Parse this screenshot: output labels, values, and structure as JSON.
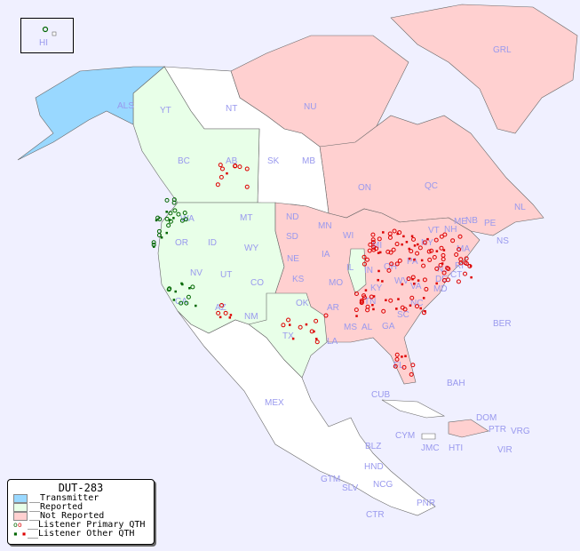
{
  "title": "DUT-283",
  "colors": {
    "background": "#f0f0ff",
    "transmitter": "#99d8ff",
    "reported": "#e8ffe8",
    "not_reported": "#ffd0d0",
    "unlisted": "#ffffff",
    "primary_green": "#006600",
    "primary_red": "#dd0000",
    "label": "#9999ee"
  },
  "legend": {
    "title": "DUT-283",
    "items": [
      {
        "label": "__Transmitter"
      },
      {
        "label": "__Reported"
      },
      {
        "label": "__Not Reported"
      },
      {
        "label": "__Listener Primary QTH"
      },
      {
        "label": "__Listener Other QTH"
      }
    ]
  },
  "regions": {
    "HI": "HI",
    "ALS": "ALS",
    "YT": "YT",
    "NT": "NT",
    "NU": "NU",
    "GRL": "GRL",
    "BC": "BC",
    "AB": "AB",
    "SK": "SK",
    "MB": "MB",
    "ON": "ON",
    "QC": "QC",
    "NL": "NL",
    "NS": "NS",
    "NB": "NB",
    "PE": "PE",
    "WA": "WA",
    "OR": "OR",
    "CA": "CA",
    "NV": "NV",
    "ID": "ID",
    "MT": "MT",
    "WY": "WY",
    "UT": "UT",
    "AZ": "AZ",
    "CO": "CO",
    "NM": "NM",
    "ND": "ND",
    "SD": "SD",
    "NE": "NE",
    "KS": "KS",
    "OK": "OK",
    "TX": "TX",
    "MN": "MN",
    "IA": "IA",
    "MO": "MO",
    "AR": "AR",
    "LA": "LA",
    "WI": "WI",
    "IL": "IL",
    "MS": "MS",
    "MI": "MI",
    "IN": "IN",
    "KY": "KY",
    "TN": "TN",
    "AL": "AL",
    "GA": "GA",
    "FL": "FL",
    "OH": "OH",
    "WV": "WV",
    "VA": "VA",
    "NC": "NC",
    "SC": "SC",
    "PA": "PA",
    "NY": "NY",
    "MD": "MD",
    "DE": "DE",
    "NJ": "NJ",
    "CT": "CT",
    "MA": "MA",
    "VT": "VT",
    "NH": "NH",
    "ME": "ME",
    "RI": "RI",
    "MEX": "MEX",
    "BER": "BER",
    "BAH": "BAH",
    "CUB": "CUB",
    "CYM": "CYM",
    "JMC": "JMC",
    "HTI": "HTI",
    "DOM": "DOM",
    "PTR": "PTR",
    "VRG": "VRG",
    "VIR": "VIR",
    "BLZ": "BLZ",
    "GTM": "GTM",
    "HND": "HND",
    "SLV": "SLV",
    "NCG": "NCG",
    "CTR": "CTR",
    "PNR": "PNR"
  }
}
